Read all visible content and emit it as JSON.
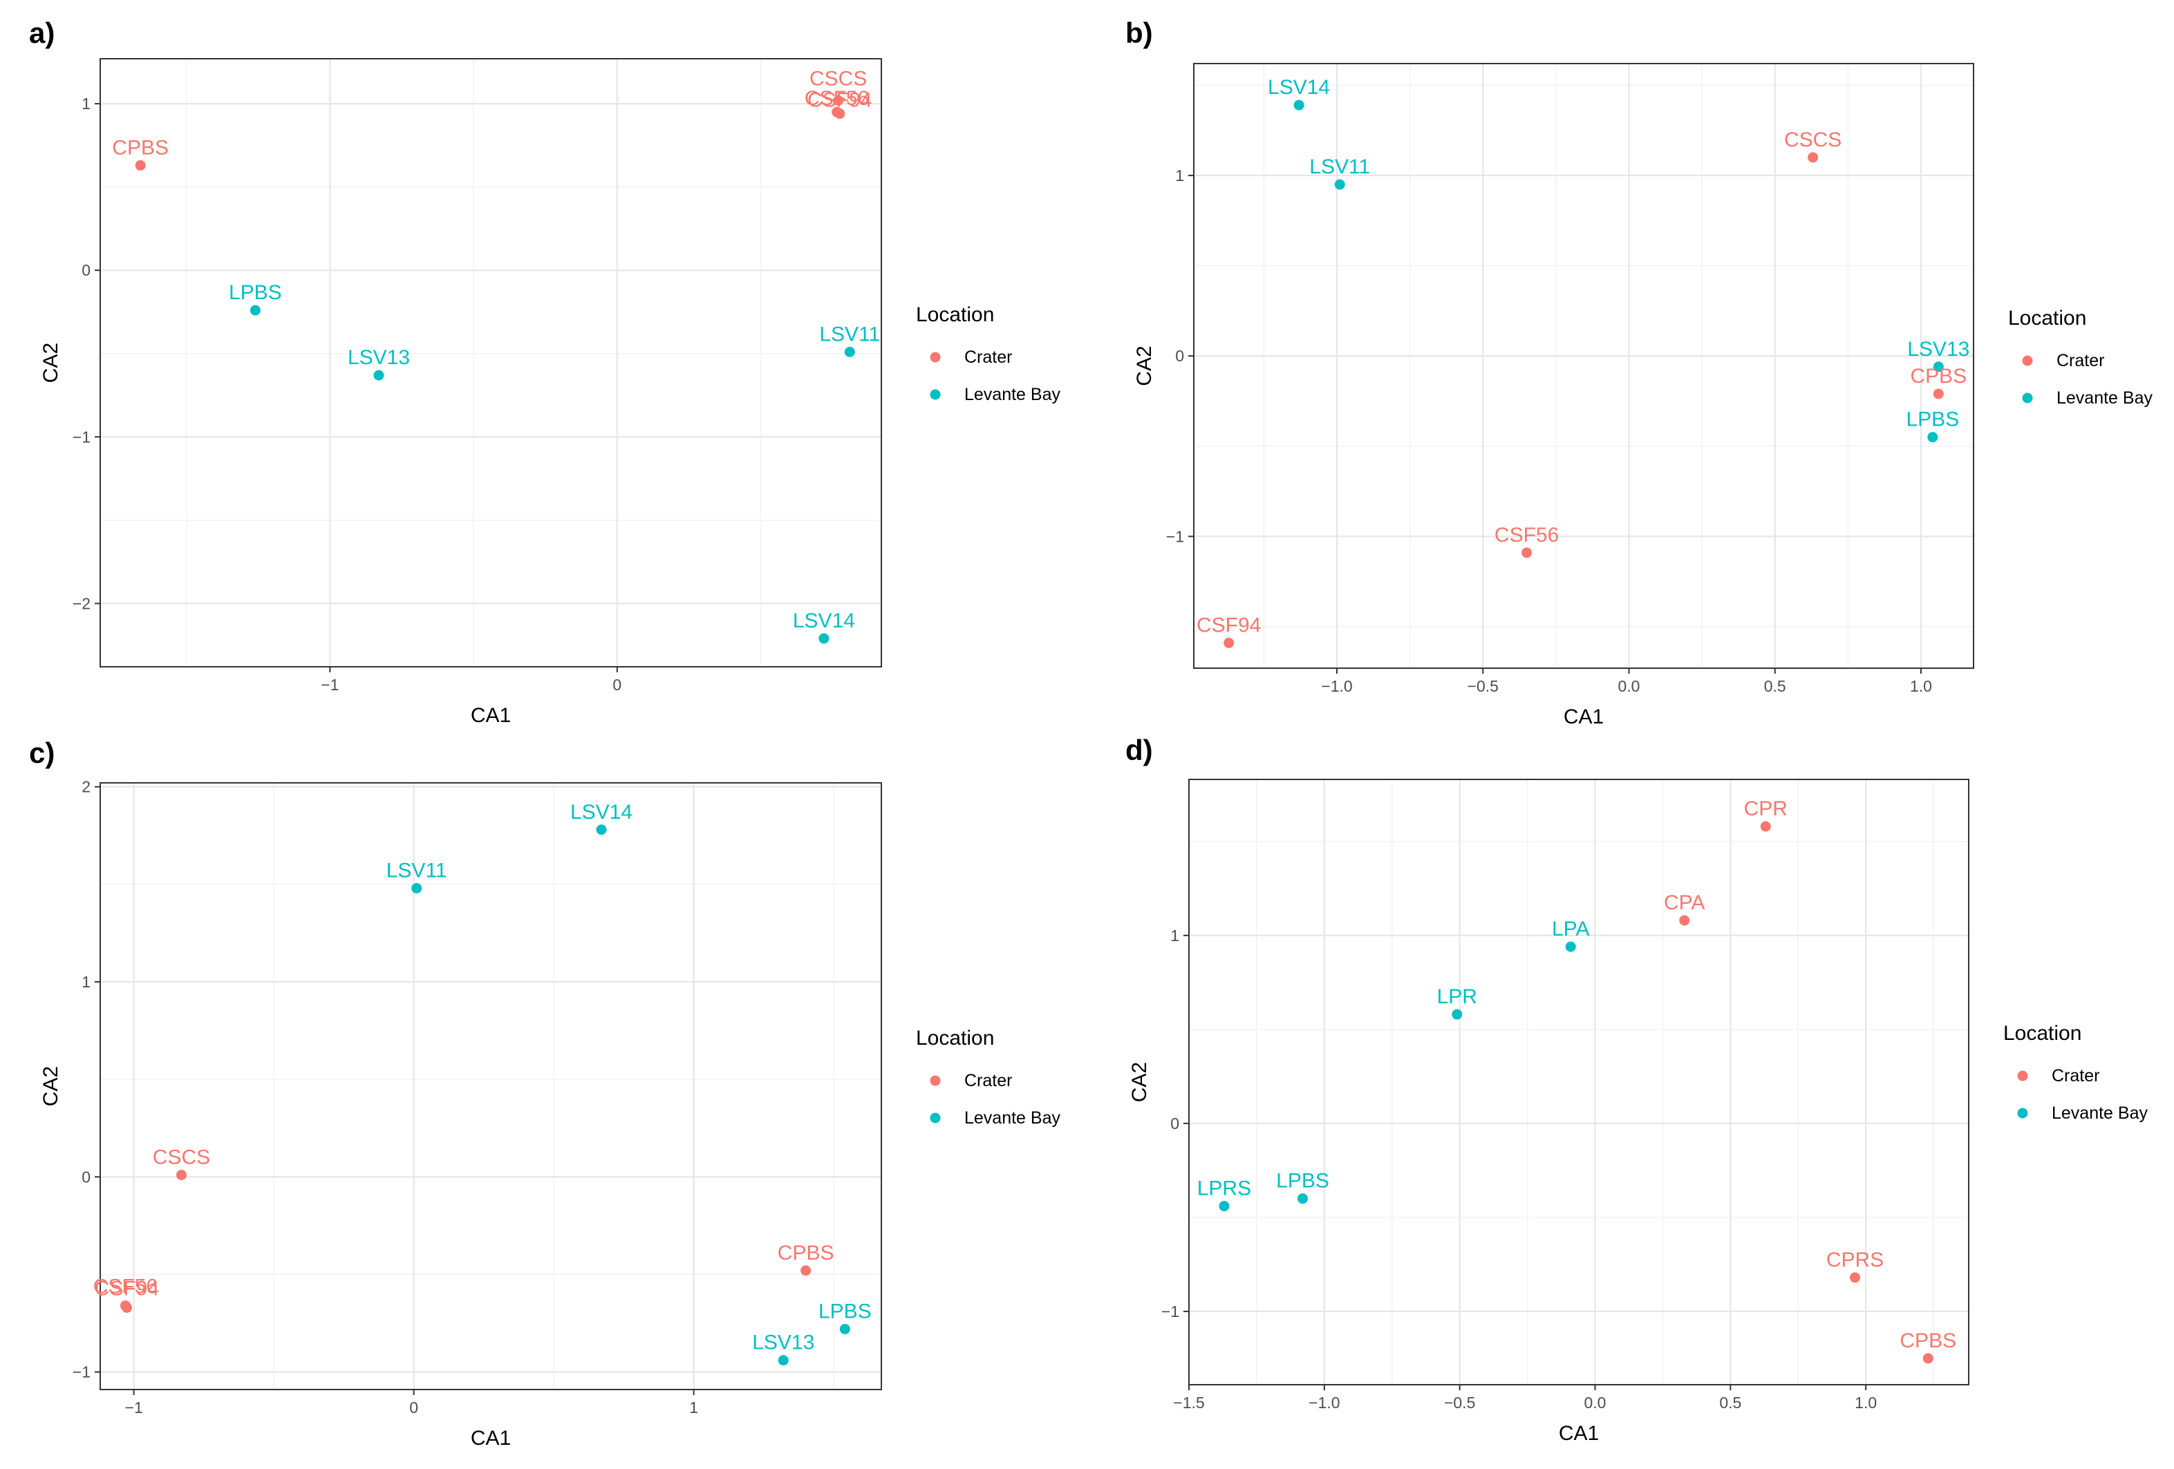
{
  "colors": {
    "Crater": "#F8766D",
    "Levante Bay": "#00BFC4"
  },
  "chart_data": [
    {
      "type": "scatter",
      "panel_label": "a)",
      "xlabel": "CA1",
      "ylabel": "CA2",
      "xlim": [
        -1.8,
        0.92
      ],
      "ylim": [
        -2.38,
        1.27
      ],
      "xticks": [
        -1,
        0
      ],
      "xtick_labels": [
        "−1",
        "0"
      ],
      "yticks": [
        -2,
        -1,
        0,
        1
      ],
      "ytick_labels": [
        "−2",
        "−1",
        "0",
        "1"
      ],
      "legend": {
        "title": "Location",
        "entries": [
          "Crater",
          "Levante Bay"
        ],
        "position": "right"
      },
      "points": [
        {
          "label": "CSCS",
          "x": 0.77,
          "y": 1.02,
          "group": "Crater"
        },
        {
          "label": "CSF56",
          "x": 0.765,
          "y": 0.95,
          "group": "Crater"
        },
        {
          "label": "CSF94",
          "x": 0.775,
          "y": 0.94,
          "group": "Crater"
        },
        {
          "label": "CPBS",
          "x": -1.66,
          "y": 0.63,
          "group": "Crater"
        },
        {
          "label": "LPBS",
          "x": -1.26,
          "y": -0.24,
          "group": "Levante Bay"
        },
        {
          "label": "LSV13",
          "x": -0.83,
          "y": -0.63,
          "group": "Levante Bay"
        },
        {
          "label": "LSV11",
          "x": 0.81,
          "y": -0.49,
          "group": "Levante Bay"
        },
        {
          "label": "LSV14",
          "x": 0.72,
          "y": -2.21,
          "group": "Levante Bay"
        }
      ]
    },
    {
      "type": "scatter",
      "panel_label": "b)",
      "xlabel": "CA1",
      "ylabel": "CA2",
      "xlim": [
        -1.49,
        1.18
      ],
      "ylim": [
        -1.73,
        1.62
      ],
      "xticks": [
        -1.0,
        -0.5,
        0.0,
        0.5,
        1.0
      ],
      "xtick_labels": [
        "−1.0",
        "−0.5",
        "0.0",
        "0.5",
        "1.0"
      ],
      "yticks": [
        -1,
        0,
        1
      ],
      "ytick_labels": [
        "−1",
        "0",
        "1"
      ],
      "legend": {
        "title": "Location",
        "entries": [
          "Crater",
          "Levante Bay"
        ],
        "position": "right"
      },
      "points": [
        {
          "label": "LSV14",
          "x": -1.13,
          "y": 1.39,
          "group": "Levante Bay"
        },
        {
          "label": "LSV11",
          "x": -0.99,
          "y": 0.95,
          "group": "Levante Bay"
        },
        {
          "label": "CSCS",
          "x": 0.63,
          "y": 1.1,
          "group": "Crater"
        },
        {
          "label": "LSV13",
          "x": 1.06,
          "y": -0.06,
          "group": "Levante Bay"
        },
        {
          "label": "CPBS",
          "x": 1.06,
          "y": -0.21,
          "group": "Crater"
        },
        {
          "label": "LPBS",
          "x": 1.04,
          "y": -0.45,
          "group": "Levante Bay"
        },
        {
          "label": "CSF56",
          "x": -0.35,
          "y": -1.09,
          "group": "Crater"
        },
        {
          "label": "CSF94",
          "x": -1.37,
          "y": -1.59,
          "group": "Crater"
        }
      ]
    },
    {
      "type": "scatter",
      "panel_label": "c)",
      "xlabel": "CA1",
      "ylabel": "CA2",
      "xlim": [
        -1.12,
        1.67
      ],
      "ylim": [
        -1.09,
        2.02
      ],
      "xticks": [
        -1,
        0,
        1
      ],
      "xtick_labels": [
        "−1",
        "0",
        "1"
      ],
      "yticks": [
        -1,
        0,
        1,
        2
      ],
      "ytick_labels": [
        "−1",
        "0",
        "1",
        "2"
      ],
      "legend": {
        "title": "Location",
        "entries": [
          "Crater",
          "Levante Bay"
        ],
        "position": "right"
      },
      "points": [
        {
          "label": "LSV14",
          "x": 0.67,
          "y": 1.78,
          "group": "Levante Bay"
        },
        {
          "label": "LSV11",
          "x": 0.01,
          "y": 1.48,
          "group": "Levante Bay"
        },
        {
          "label": "CSCS",
          "x": -0.83,
          "y": 0.01,
          "group": "Crater"
        },
        {
          "label": "CSF56",
          "x": -1.03,
          "y": -0.66,
          "group": "Crater"
        },
        {
          "label": "CSF94",
          "x": -1.025,
          "y": -0.67,
          "group": "Crater"
        },
        {
          "label": "CPBS",
          "x": 1.4,
          "y": -0.48,
          "group": "Crater"
        },
        {
          "label": "LPBS",
          "x": 1.54,
          "y": -0.78,
          "group": "Levante Bay"
        },
        {
          "label": "LSV13",
          "x": 1.32,
          "y": -0.94,
          "group": "Levante Bay"
        }
      ]
    },
    {
      "type": "scatter",
      "panel_label": "d)",
      "xlabel": "CA1",
      "ylabel": "CA2",
      "xlim": [
        -1.5,
        1.38
      ],
      "ylim": [
        -1.39,
        1.83
      ],
      "xticks": [
        -1.5,
        -1.0,
        -0.5,
        0.0,
        0.5,
        1.0
      ],
      "xtick_labels": [
        "−1.5",
        "−1.0",
        "−0.5",
        "0.0",
        "0.5",
        "1.0"
      ],
      "yticks": [
        -1,
        0,
        1
      ],
      "ytick_labels": [
        "−1",
        "0",
        "1"
      ],
      "legend": {
        "title": "Location",
        "entries": [
          "Crater",
          "Levante Bay"
        ],
        "position": "right"
      },
      "points": [
        {
          "label": "CPR",
          "x": 0.63,
          "y": 1.58,
          "group": "Crater"
        },
        {
          "label": "CPA",
          "x": 0.33,
          "y": 1.08,
          "group": "Crater"
        },
        {
          "label": "LPA",
          "x": -0.09,
          "y": 0.94,
          "group": "Levante Bay"
        },
        {
          "label": "LPR",
          "x": -0.51,
          "y": 0.58,
          "group": "Levante Bay"
        },
        {
          "label": "LPRS",
          "x": -1.37,
          "y": -0.44,
          "group": "Levante Bay"
        },
        {
          "label": "LPBS",
          "x": -1.08,
          "y": -0.4,
          "group": "Levante Bay"
        },
        {
          "label": "CPRS",
          "x": 0.96,
          "y": -0.82,
          "group": "Crater"
        },
        {
          "label": "CPBS",
          "x": 1.23,
          "y": -1.25,
          "group": "Crater"
        }
      ]
    }
  ]
}
